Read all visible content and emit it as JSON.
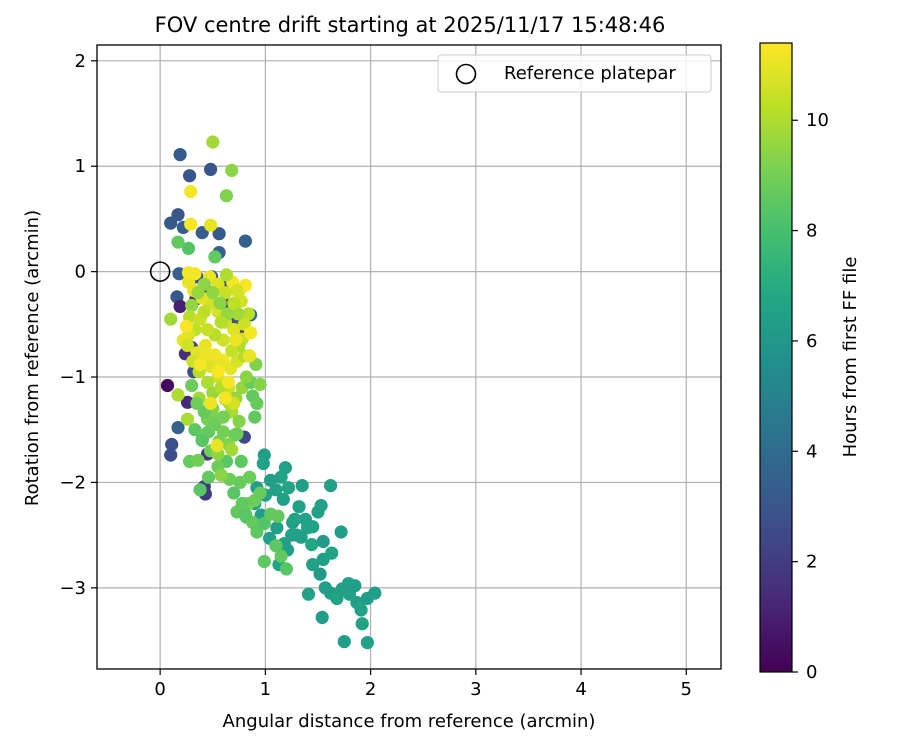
{
  "chart_data": {
    "type": "scatter",
    "title": "FOV centre drift starting at 2025/11/17 15:48:46",
    "xlabel": "Angular distance from reference (arcmin)",
    "ylabel": "Rotation from reference (arcmin)",
    "xlim": [
      -0.6,
      5.33
    ],
    "ylim": [
      -3.77,
      2.15
    ],
    "xticks": [
      0,
      1,
      2,
      3,
      4,
      5
    ],
    "yticks": [
      -3,
      -2,
      -1,
      0,
      1,
      2
    ],
    "xtick_labels": [
      "0",
      "1",
      "2",
      "3",
      "4",
      "5"
    ],
    "ytick_labels": [
      "−3",
      "−2",
      "−1",
      "0",
      "1",
      "2"
    ],
    "grid": true,
    "legend": {
      "location": "top-right",
      "label": "Reference platepar"
    },
    "reference_point": {
      "x": 0.0,
      "y": 0.0
    },
    "colorbar": {
      "label": "Hours from first FF file",
      "min": 0,
      "max": 11.4,
      "ticks": [
        0,
        2,
        4,
        6,
        8,
        10
      ],
      "tick_labels": [
        "0",
        "2",
        "4",
        "6",
        "8",
        "10"
      ],
      "colormap": "viridis"
    },
    "points": [
      [
        0.19,
        1.11,
        3.3
      ],
      [
        0.48,
        0.97,
        3.1
      ],
      [
        0.28,
        0.91,
        3.0
      ],
      [
        0.1,
        0.46,
        3.2
      ],
      [
        0.17,
        0.54,
        3.1
      ],
      [
        0.22,
        0.42,
        3.3
      ],
      [
        0.4,
        0.37,
        3.4
      ],
      [
        0.56,
        0.36,
        3.2
      ],
      [
        0.56,
        0.18,
        3.5
      ],
      [
        0.81,
        0.29,
        3.6
      ],
      [
        0.18,
        -0.02,
        3.4
      ],
      [
        0.35,
        -0.05,
        3.3
      ],
      [
        0.16,
        -0.24,
        3.2
      ],
      [
        0.19,
        -0.33,
        1.0
      ],
      [
        0.34,
        -0.26,
        1.2
      ],
      [
        0.45,
        -0.19,
        1.4
      ],
      [
        0.3,
        -0.72,
        2.5
      ],
      [
        0.24,
        -0.78,
        1.5
      ],
      [
        0.32,
        -0.95,
        2.6
      ],
      [
        0.07,
        -1.08,
        0.3
      ],
      [
        0.26,
        -1.24,
        1.3
      ],
      [
        0.17,
        -1.48,
        3.6
      ],
      [
        0.11,
        -1.64,
        2.8
      ],
      [
        0.1,
        -1.74,
        2.6
      ],
      [
        0.4,
        -1.6,
        2.2
      ],
      [
        0.45,
        -1.73,
        1.8
      ],
      [
        0.42,
        -2.04,
        2.0
      ],
      [
        0.43,
        -2.11,
        1.9
      ],
      [
        0.8,
        -1.57,
        2.4
      ],
      [
        0.86,
        -0.41,
        3.8
      ],
      [
        0.77,
        -0.52,
        1.1
      ],
      [
        0.62,
        -0.31,
        2.2
      ],
      [
        0.72,
        -0.46,
        3.0
      ],
      [
        0.6,
        -0.12,
        2.9
      ],
      [
        0.49,
        -0.05,
        3.1
      ],
      [
        0.99,
        -1.74,
        6.4
      ],
      [
        1.05,
        -1.98,
        6.3
      ],
      [
        1.15,
        -1.95,
        6.6
      ],
      [
        1.19,
        -1.86,
        6.5
      ],
      [
        1.22,
        -2.05,
        6.7
      ],
      [
        1.32,
        -2.23,
        6.5
      ],
      [
        1.35,
        -2.03,
        6.4
      ],
      [
        1.62,
        -2.03,
        6.6
      ],
      [
        1.3,
        -2.5,
        6.3
      ],
      [
        1.4,
        -2.43,
        6.6
      ],
      [
        1.5,
        -2.28,
        6.5
      ],
      [
        1.53,
        -2.22,
        6.4
      ],
      [
        1.44,
        -2.59,
        6.8
      ],
      [
        1.55,
        -2.56,
        6.2
      ],
      [
        1.45,
        -2.78,
        6.5
      ],
      [
        1.55,
        -2.73,
        6.4
      ],
      [
        1.63,
        -2.67,
        6.6
      ],
      [
        1.72,
        -2.47,
        6.3
      ],
      [
        1.52,
        -2.87,
        6.2
      ],
      [
        1.57,
        -3.0,
        6.4
      ],
      [
        1.62,
        -3.05,
        6.3
      ],
      [
        1.68,
        -3.1,
        6.6
      ],
      [
        1.73,
        -3.01,
        6.5
      ],
      [
        1.79,
        -2.96,
        6.4
      ],
      [
        1.8,
        -3.06,
        6.5
      ],
      [
        1.85,
        -2.98,
        6.3
      ],
      [
        1.87,
        -3.14,
        6.4
      ],
      [
        1.91,
        -3.21,
        6.5
      ],
      [
        1.97,
        -3.1,
        6.3
      ],
      [
        2.04,
        -3.05,
        6.4
      ],
      [
        1.92,
        -3.34,
        6.6
      ],
      [
        1.97,
        -3.52,
        6.5
      ],
      [
        1.75,
        -3.51,
        6.4
      ],
      [
        1.54,
        -3.28,
        6.3
      ],
      [
        1.41,
        -3.06,
        6.5
      ],
      [
        1.13,
        -2.78,
        6.6
      ],
      [
        1.21,
        -2.64,
        6.4
      ],
      [
        1.04,
        -2.53,
        6.5
      ],
      [
        1.11,
        -2.43,
        6.4
      ],
      [
        1.26,
        -2.38,
        6.3
      ],
      [
        1.34,
        -2.52,
        6.4
      ],
      [
        1.38,
        -2.35,
        6.5
      ],
      [
        1.45,
        -2.42,
        6.6
      ],
      [
        0.96,
        -2.31,
        6.3
      ],
      [
        1.0,
        -2.12,
        6.4
      ],
      [
        1.28,
        -2.35,
        6.6
      ],
      [
        0.9,
        -2.2,
        6.5
      ],
      [
        1.1,
        -2.07,
        6.5
      ],
      [
        1.17,
        -2.16,
        6.4
      ],
      [
        0.98,
        -1.82,
        6.6
      ],
      [
        1.25,
        -2.5,
        6.5
      ],
      [
        1.18,
        -2.58,
        6.4
      ],
      [
        0.92,
        -2.05,
        6.3
      ],
      [
        0.5,
        1.23,
        9.8
      ],
      [
        0.68,
        0.96,
        9.4
      ],
      [
        0.63,
        0.72,
        9.2
      ],
      [
        0.17,
        0.28,
        8.6
      ],
      [
        0.27,
        0.22,
        8.3
      ],
      [
        0.52,
        0.14,
        8.6
      ],
      [
        0.1,
        -0.45,
        9.8
      ],
      [
        0.17,
        -1.17,
        10.0
      ],
      [
        0.26,
        -1.4,
        9.9
      ],
      [
        0.37,
        -1.2,
        9.8
      ],
      [
        0.4,
        -1.55,
        9.2
      ],
      [
        0.28,
        -1.8,
        8.7
      ],
      [
        0.36,
        -1.79,
        8.9
      ],
      [
        0.46,
        -1.95,
        8.6
      ],
      [
        0.38,
        -2.07,
        8.4
      ],
      [
        0.63,
        -1.8,
        8.4
      ],
      [
        0.71,
        -1.55,
        8.7
      ],
      [
        0.77,
        -1.8,
        8.5
      ],
      [
        0.7,
        -2.1,
        8.4
      ],
      [
        0.73,
        -2.28,
        8.6
      ],
      [
        0.82,
        -2.33,
        8.4
      ],
      [
        0.88,
        -2.38,
        8.7
      ],
      [
        0.92,
        -2.47,
        8.5
      ],
      [
        0.99,
        -2.39,
        8.3
      ],
      [
        1.05,
        -2.3,
        8.6
      ],
      [
        1.12,
        -2.32,
        8.6
      ],
      [
        1.15,
        -2.7,
        8.6
      ],
      [
        1.2,
        -2.82,
        8.4
      ],
      [
        1.1,
        -2.6,
        8.5
      ],
      [
        0.99,
        -2.75,
        8.5
      ],
      [
        0.66,
        -1.97,
        8.8
      ],
      [
        0.76,
        -2.0,
        8.7
      ],
      [
        0.84,
        -2.2,
        8.9
      ],
      [
        0.9,
        -2.17,
        8.8
      ],
      [
        0.95,
        -2.1,
        8.7
      ],
      [
        0.85,
        -1.95,
        8.8
      ],
      [
        0.81,
        -2.3,
        8.4
      ],
      [
        0.78,
        -2.2,
        8.6
      ],
      [
        0.55,
        -1.85,
        8.8
      ],
      [
        0.48,
        -1.7,
        8.9
      ],
      [
        0.56,
        -1.61,
        9.0
      ],
      [
        0.65,
        -1.64,
        9.3
      ],
      [
        0.53,
        -1.4,
        9.1
      ],
      [
        0.55,
        -1.73,
        9.5
      ],
      [
        0.58,
        -1.93,
        9.4
      ],
      [
        0.68,
        -1.69,
        9.8
      ],
      [
        0.73,
        -1.54,
        8.8
      ],
      [
        0.6,
        -1.52,
        9.0
      ],
      [
        0.45,
        -1.4,
        9.0
      ],
      [
        0.5,
        -1.3,
        9.2
      ],
      [
        0.62,
        -1.21,
        9.4
      ],
      [
        0.68,
        -1.33,
        9.9
      ],
      [
        0.75,
        -1.42,
        9.3
      ],
      [
        0.78,
        -1.1,
        9.6
      ],
      [
        0.86,
        -1.05,
        8.7
      ],
      [
        0.88,
        -1.18,
        8.6
      ],
      [
        0.92,
        -1.25,
        8.7
      ],
      [
        0.9,
        -1.38,
        8.6
      ],
      [
        0.65,
        -1.1,
        10.5
      ],
      [
        0.55,
        -1.0,
        10.6
      ],
      [
        0.48,
        -0.9,
        10.8
      ],
      [
        0.4,
        -0.82,
        10.7
      ],
      [
        0.35,
        -0.77,
        10.9
      ],
      [
        0.43,
        -0.7,
        11.0
      ],
      [
        0.52,
        -0.79,
        11.1
      ],
      [
        0.6,
        -0.84,
        11.2
      ],
      [
        0.67,
        -0.92,
        11.0
      ],
      [
        0.73,
        -0.85,
        10.7
      ],
      [
        0.8,
        -0.8,
        10.2
      ],
      [
        0.78,
        -0.64,
        10.4
      ],
      [
        0.7,
        -0.55,
        10.9
      ],
      [
        0.62,
        -0.48,
        10.5
      ],
      [
        0.55,
        -0.38,
        10.7
      ],
      [
        0.47,
        -0.3,
        10.6
      ],
      [
        0.4,
        -0.25,
        10.9
      ],
      [
        0.32,
        -0.18,
        11.0
      ],
      [
        0.27,
        -0.1,
        11.0
      ],
      [
        0.33,
        -0.02,
        11.3
      ],
      [
        0.47,
        -0.05,
        11.1
      ],
      [
        0.55,
        -0.12,
        10.8
      ],
      [
        0.62,
        -0.2,
        10.4
      ],
      [
        0.69,
        -0.1,
        11.2
      ],
      [
        0.76,
        -0.17,
        11.0
      ],
      [
        0.81,
        -0.13,
        11.3
      ],
      [
        0.77,
        -0.28,
        10.6
      ],
      [
        0.84,
        -0.4,
        10.2
      ],
      [
        0.8,
        -0.5,
        10.5
      ],
      [
        0.86,
        -0.58,
        11.2
      ],
      [
        0.74,
        -0.4,
        9.8
      ],
      [
        0.64,
        -0.4,
        9.6
      ],
      [
        0.57,
        -0.3,
        9.4
      ],
      [
        0.5,
        -0.2,
        9.5
      ],
      [
        0.42,
        -0.12,
        9.4
      ],
      [
        0.36,
        -0.2,
        9.6
      ],
      [
        0.3,
        -0.32,
        9.5
      ],
      [
        0.28,
        -0.43,
        10.2
      ],
      [
        0.33,
        -0.55,
        10.3
      ],
      [
        0.27,
        -0.6,
        10.8
      ],
      [
        0.22,
        -0.65,
        11.0
      ],
      [
        0.26,
        -0.7,
        10.6
      ],
      [
        0.31,
        -0.85,
        10.5
      ],
      [
        0.37,
        -0.95,
        10.2
      ],
      [
        0.45,
        -1.05,
        10.0
      ],
      [
        0.5,
        -1.15,
        9.7
      ],
      [
        0.58,
        -1.1,
        10.1
      ],
      [
        0.66,
        -1.25,
        9.9
      ],
      [
        0.72,
        -1.2,
        9.6
      ],
      [
        0.82,
        -1.0,
        9.4
      ],
      [
        0.91,
        -0.88,
        9.2
      ],
      [
        0.95,
        -1.07,
        9.3
      ],
      [
        0.75,
        -0.7,
        10.0
      ],
      [
        0.68,
        -0.75,
        10.4
      ],
      [
        0.6,
        -0.65,
        10.6
      ],
      [
        0.52,
        -0.6,
        10.2
      ],
      [
        0.45,
        -0.55,
        10.4
      ],
      [
        0.38,
        -0.45,
        10.5
      ],
      [
        0.42,
        -0.38,
        10.3
      ],
      [
        0.58,
        -0.48,
        10.1
      ],
      [
        0.7,
        -0.3,
        10.3
      ],
      [
        0.73,
        -0.18,
        10.6
      ],
      [
        0.63,
        -0.03,
        10.0
      ],
      [
        0.3,
        -1.08,
        8.8
      ],
      [
        0.35,
        -1.25,
        8.9
      ],
      [
        0.42,
        -1.33,
        8.7
      ],
      [
        0.33,
        -1.5,
        8.5
      ],
      [
        0.46,
        -1.52,
        8.6
      ],
      [
        0.52,
        -1.45,
        8.8
      ],
      [
        0.6,
        -1.38,
        9.0
      ],
      [
        0.4,
        -1.6,
        8.4
      ],
      [
        0.7,
        -1.25,
        10.6
      ],
      [
        0.57,
        -0.88,
        11.0
      ],
      [
        0.44,
        -0.78,
        11.1
      ],
      [
        0.38,
        -0.88,
        11.2
      ],
      [
        0.29,
        0.45,
        11.3
      ],
      [
        0.29,
        0.76,
        11.2
      ],
      [
        0.48,
        0.44,
        11.0
      ],
      [
        0.27,
        -0.01,
        11.2
      ],
      [
        0.55,
        -0.95,
        11.3
      ],
      [
        0.65,
        -1.05,
        11.2
      ],
      [
        0.72,
        -0.65,
        11.1
      ],
      [
        0.85,
        -0.8,
        11.0
      ],
      [
        0.62,
        -1.2,
        11.2
      ],
      [
        0.54,
        -1.65,
        11.0
      ],
      [
        0.48,
        -1.25,
        11.1
      ],
      [
        0.25,
        -0.52,
        11.3
      ]
    ]
  }
}
